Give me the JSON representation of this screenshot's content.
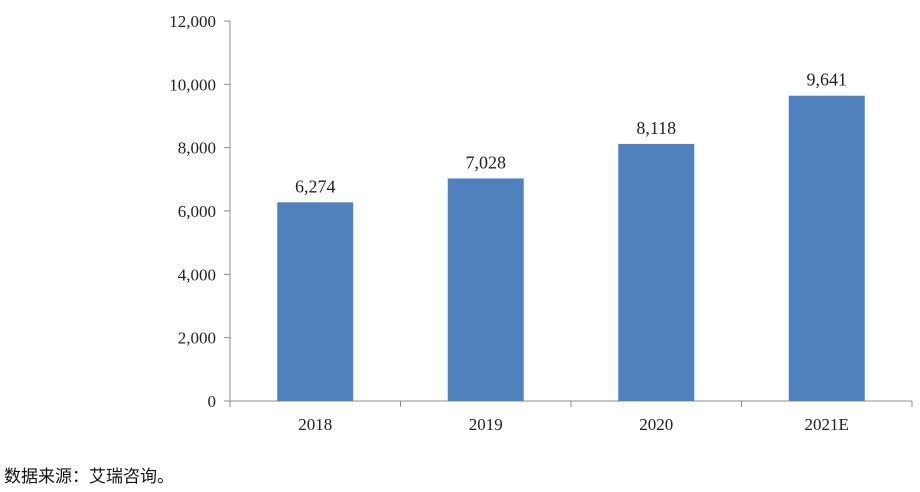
{
  "chart_data": {
    "type": "bar",
    "categories": [
      "2018",
      "2019",
      "2020",
      "2021E"
    ],
    "values": [
      6274,
      7028,
      8118,
      9641
    ],
    "data_labels": [
      "6,274",
      "7,028",
      "8,118",
      "9,641"
    ],
    "ylim": [
      0,
      12000
    ],
    "yticks": [
      0,
      2000,
      4000,
      6000,
      8000,
      10000,
      12000
    ],
    "ytick_labels": [
      "0",
      "2,000",
      "4,000",
      "6,000",
      "8,000",
      "10,000",
      "12,000"
    ],
    "grid": false,
    "legend": "none",
    "bar_color": "#4f81bd",
    "title": "",
    "xlabel": "",
    "ylabel": ""
  },
  "source_note": "数据来源：艾瑞咨询。"
}
